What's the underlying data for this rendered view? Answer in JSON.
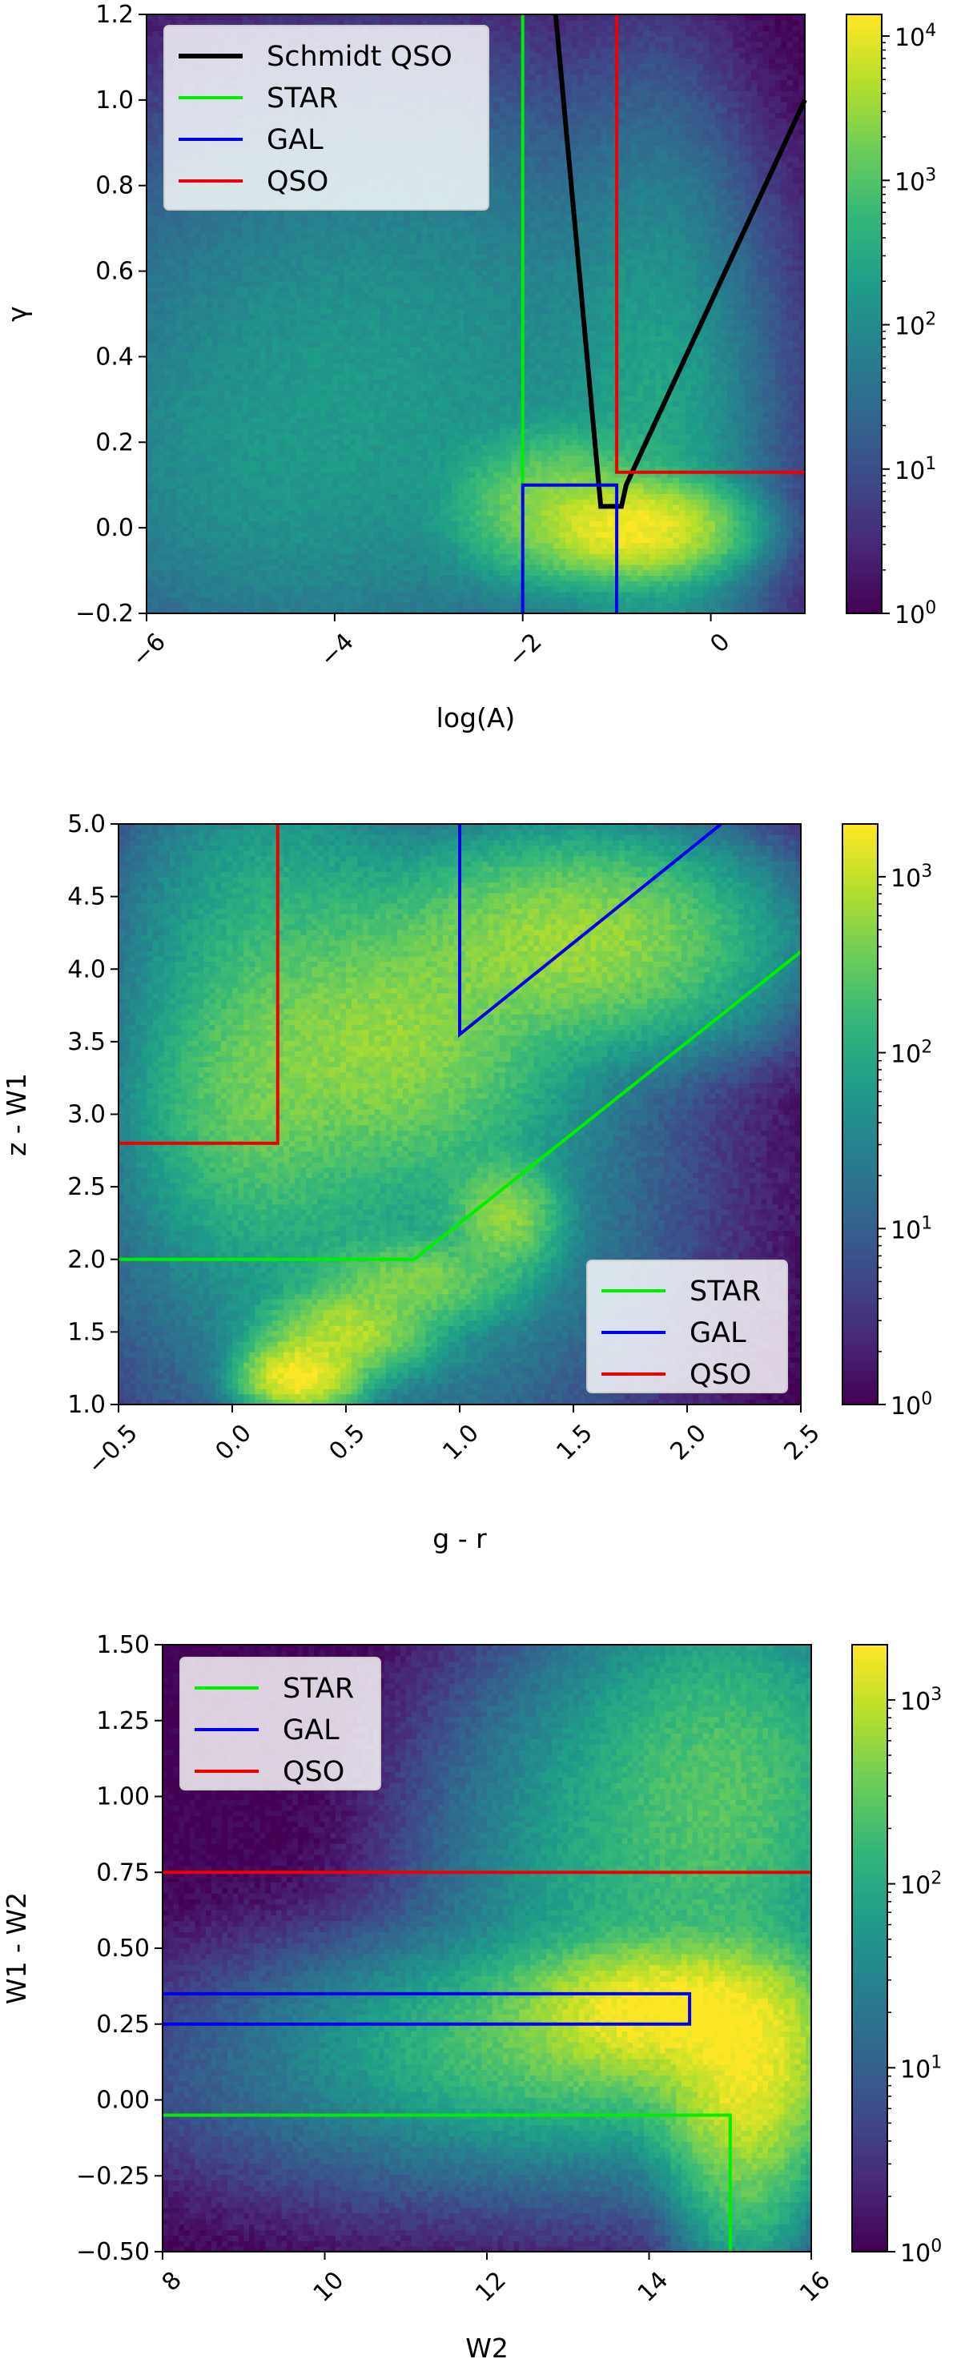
{
  "chart_data": [
    {
      "type": "heatmap",
      "xlabel": "log(A)",
      "ylabel": "γ",
      "xlim": [
        -6,
        1
      ],
      "ylim": [
        -0.2,
        1.2
      ],
      "xticks": [
        -6,
        -4,
        -2,
        0
      ],
      "xtick_labels": [
        "−6",
        "−4",
        "−2",
        "0"
      ],
      "yticks": [
        -0.2,
        0.0,
        0.2,
        0.4,
        0.6,
        0.8,
        1.0,
        1.2
      ],
      "ytick_labels": [
        "−0.2",
        "0.0",
        "0.2",
        "0.4",
        "0.6",
        "0.8",
        "1.0",
        "1.2"
      ],
      "colorbar": {
        "scale": "log",
        "ticks": [
          "10^0",
          "10^1",
          "10^2",
          "10^3",
          "10^4"
        ],
        "max_exp": 4.15
      },
      "colormap": "viridis",
      "legend_position": "upper-left",
      "density_blobs": [
        {
          "x": -0.8,
          "y": 0.0,
          "sx": 0.45,
          "sy": 0.05,
          "amp": 4.1
        },
        {
          "x": -1.6,
          "y": 0.05,
          "sx": 0.5,
          "sy": 0.08,
          "amp": 3.4
        },
        {
          "x": -3.5,
          "y": 0.3,
          "sx": 1.7,
          "sy": 0.32,
          "amp": 2.2
        },
        {
          "x": -0.6,
          "y": 0.15,
          "sx": 0.5,
          "sy": 0.35,
          "amp": 2.4
        },
        {
          "x": -5.0,
          "y": 0.1,
          "sx": 1.0,
          "sy": 0.2,
          "amp": 1.7
        }
      ],
      "series": [
        {
          "name": "Schmidt QSO",
          "color": "#000000",
          "x": [
            -1.65,
            -1.17,
            -0.95,
            -0.9,
            1.0
          ],
          "y": [
            1.2,
            0.05,
            0.05,
            0.1,
            1.0
          ]
        },
        {
          "name": "STAR",
          "color": "#00ee00",
          "x": [
            -2.0,
            -2.0,
            -1.0,
            -1.0
          ],
          "y": [
            1.2,
            0.1,
            0.1,
            0.1
          ]
        },
        {
          "name": "GAL",
          "color": "#0000ee",
          "x": [
            -2.0,
            -2.0,
            -1.0,
            -1.0
          ],
          "y": [
            -0.2,
            0.1,
            0.1,
            -0.2
          ]
        },
        {
          "name": "QSO",
          "color": "#ee0000",
          "x": [
            -1.0,
            -1.0,
            1.0
          ],
          "y": [
            1.2,
            0.13,
            0.13
          ]
        }
      ],
      "legend": [
        "Schmidt QSO",
        "STAR",
        "GAL",
        "QSO"
      ]
    },
    {
      "type": "heatmap",
      "xlabel": "g - r",
      "ylabel": "z - W1",
      "xlim": [
        -0.5,
        2.5
      ],
      "ylim": [
        1.0,
        5.0
      ],
      "xticks": [
        -0.5,
        0.0,
        0.5,
        1.0,
        1.5,
        2.0,
        2.5
      ],
      "xtick_labels": [
        "−0.5",
        "0.0",
        "0.5",
        "1.0",
        "1.5",
        "2.0",
        "2.5"
      ],
      "yticks": [
        1.0,
        1.5,
        2.0,
        2.5,
        3.0,
        3.5,
        4.0,
        4.5,
        5.0
      ],
      "ytick_labels": [
        "1.0",
        "1.5",
        "2.0",
        "2.5",
        "3.0",
        "3.5",
        "4.0",
        "4.5",
        "5.0"
      ],
      "colorbar": {
        "scale": "log",
        "ticks": [
          "10^0",
          "10^1",
          "10^2",
          "10^3"
        ],
        "max_exp": 3.3
      },
      "colormap": "viridis",
      "legend_position": "lower-right",
      "density_blobs": [
        {
          "x": 0.3,
          "y": 1.2,
          "sx": 0.12,
          "sy": 0.12,
          "amp": 3.3
        },
        {
          "x": 0.5,
          "y": 1.5,
          "sx": 0.18,
          "sy": 0.15,
          "amp": 2.9
        },
        {
          "x": 0.8,
          "y": 1.85,
          "sx": 0.22,
          "sy": 0.15,
          "amp": 2.6
        },
        {
          "x": 1.2,
          "y": 2.3,
          "sx": 0.12,
          "sy": 0.2,
          "amp": 2.7
        },
        {
          "x": 0.7,
          "y": 3.5,
          "sx": 0.35,
          "sy": 0.45,
          "amp": 2.7
        },
        {
          "x": 1.5,
          "y": 4.2,
          "sx": 0.4,
          "sy": 0.35,
          "amp": 2.8
        },
        {
          "x": 0.1,
          "y": 3.1,
          "sx": 0.25,
          "sy": 0.5,
          "amp": 2.4
        },
        {
          "x": 0.6,
          "y": 2.5,
          "sx": 0.6,
          "sy": 0.9,
          "amp": 1.9
        },
        {
          "x": 0.2,
          "y": 4.3,
          "sx": 0.35,
          "sy": 0.6,
          "amp": 2.0
        }
      ],
      "series": [
        {
          "name": "STAR",
          "color": "#00ee00",
          "x": [
            -0.5,
            0.8,
            2.5
          ],
          "y": [
            2.0,
            2.0,
            4.12
          ]
        },
        {
          "name": "GAL",
          "color": "#0000ee",
          "x": [
            1.0,
            1.0,
            2.15
          ],
          "y": [
            5.0,
            3.55,
            5.0
          ]
        },
        {
          "name": "QSO",
          "color": "#ee0000",
          "x": [
            -0.5,
            0.2,
            0.2
          ],
          "y": [
            2.8,
            2.8,
            5.0
          ]
        }
      ],
      "legend": [
        "STAR",
        "GAL",
        "QSO"
      ]
    },
    {
      "type": "heatmap",
      "xlabel": "W2",
      "ylabel": "W1 - W2",
      "xlim": [
        8,
        16
      ],
      "ylim": [
        -0.5,
        1.5
      ],
      "xticks": [
        8,
        10,
        12,
        14,
        16
      ],
      "xtick_labels": [
        "8",
        "10",
        "12",
        "14",
        "16"
      ],
      "yticks": [
        -0.5,
        -0.25,
        0.0,
        0.25,
        0.5,
        0.75,
        1.0,
        1.25,
        1.5
      ],
      "ytick_labels": [
        "−0.50",
        "−0.25",
        "0.00",
        "0.25",
        "0.50",
        "0.75",
        "1.00",
        "1.25",
        "1.50"
      ],
      "colorbar": {
        "scale": "log",
        "ticks": [
          "10^0",
          "10^1",
          "10^2",
          "10^3"
        ],
        "max_exp": 3.3
      },
      "colormap": "viridis",
      "legend_position": "upper-left",
      "density_blobs": [
        {
          "x": 14.2,
          "y": 0.3,
          "sx": 0.8,
          "sy": 0.1,
          "amp": 3.3
        },
        {
          "x": 15.2,
          "y": 0.1,
          "sx": 0.5,
          "sy": 0.18,
          "amp": 3.2
        },
        {
          "x": 13.5,
          "y": 0.2,
          "sx": 1.5,
          "sy": 0.15,
          "amp": 2.5
        },
        {
          "x": 15.0,
          "y": 1.05,
          "sx": 0.9,
          "sy": 0.3,
          "amp": 2.3
        },
        {
          "x": 12.5,
          "y": 0.1,
          "sx": 2.2,
          "sy": 0.22,
          "amp": 1.6
        },
        {
          "x": 15.2,
          "y": -0.3,
          "sx": 0.4,
          "sy": 0.15,
          "amp": 2.2
        },
        {
          "x": 14.0,
          "y": 0.75,
          "sx": 1.2,
          "sy": 0.4,
          "amp": 2.0
        }
      ],
      "series": [
        {
          "name": "STAR",
          "color": "#00ee00",
          "x": [
            8,
            15,
            15
          ],
          "y": [
            -0.05,
            -0.05,
            -0.5
          ]
        },
        {
          "name": "GAL",
          "color": "#0000ee",
          "x": [
            8,
            14.5,
            14.5,
            8
          ],
          "y": [
            0.35,
            0.35,
            0.25,
            0.25
          ]
        },
        {
          "name": "QSO",
          "color": "#ee0000",
          "x": [
            8,
            16
          ],
          "y": [
            0.75,
            0.75
          ]
        }
      ],
      "legend": [
        "STAR",
        "GAL",
        "QSO"
      ]
    }
  ]
}
